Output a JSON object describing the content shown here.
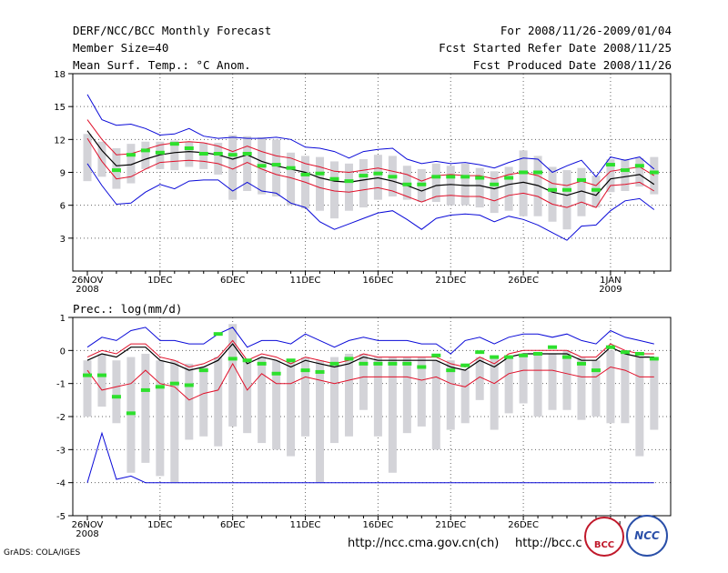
{
  "header": {
    "title": "DERF/NCC/BCC Monthly Forecast",
    "member_size": "Member Size=40",
    "variable": "Mean Surf. Temp.: °C Anom.",
    "period": "For 2008/11/26-2009/01/04",
    "started": "Fcst Started Refer Date 2008/11/25",
    "produced": "Fcst Produced Date 2008/11/26"
  },
  "footer": {
    "url1": "http://ncc.cma.gov.cn(ch)",
    "url2": "http://bcc.c",
    "grads": "GrADS: COLA/IGES",
    "logo_bcc": "BCC",
    "logo_ncc": "NCC"
  },
  "colors": {
    "spread": "#d3d3d8",
    "mean": "#000000",
    "inner": "#e0102a",
    "outer": "#0a0ad8",
    "obs": "#2de02d"
  },
  "chart_data": [
    {
      "type": "line",
      "title": "Mean Surf. Temp.: °C Anom.",
      "ylim": [
        0,
        18
      ],
      "yticks": [
        3,
        6,
        9,
        12,
        15,
        18
      ],
      "xticks": [
        {
          "day": 0,
          "label": "26NOV",
          "sub": "2008"
        },
        {
          "day": 5,
          "label": "1DEC",
          "sub": ""
        },
        {
          "day": 10,
          "label": "6DEC",
          "sub": ""
        },
        {
          "day": 15,
          "label": "11DEC",
          "sub": ""
        },
        {
          "day": 20,
          "label": "16DEC",
          "sub": ""
        },
        {
          "day": 25,
          "label": "21DEC",
          "sub": ""
        },
        {
          "day": 30,
          "label": "26DEC",
          "sub": ""
        },
        {
          "day": 36,
          "label": "1JAN",
          "sub": "2009"
        }
      ],
      "x": [
        0,
        1,
        2,
        3,
        4,
        5,
        6,
        7,
        8,
        9,
        10,
        11,
        12,
        13,
        14,
        15,
        16,
        17,
        18,
        19,
        20,
        21,
        22,
        23,
        24,
        25,
        26,
        27,
        28,
        29,
        30,
        31,
        32,
        33,
        34,
        35,
        36,
        37,
        38,
        39
      ],
      "mean": [
        12.8,
        11.0,
        9.6,
        9.7,
        10.2,
        10.6,
        10.8,
        10.9,
        10.8,
        10.6,
        10.2,
        10.6,
        10.0,
        9.6,
        9.3,
        9.0,
        8.5,
        8.2,
        8.1,
        8.3,
        8.5,
        8.2,
        7.8,
        7.3,
        7.8,
        7.9,
        7.8,
        7.8,
        7.5,
        7.9,
        8.1,
        7.8,
        7.2,
        6.9,
        7.3,
        6.9,
        8.4,
        8.6,
        8.8,
        7.9
      ],
      "upper1": [
        13.8,
        12.0,
        10.6,
        10.7,
        11.1,
        11.5,
        11.7,
        11.8,
        11.7,
        11.4,
        10.9,
        11.4,
        10.9,
        10.5,
        10.3,
        9.8,
        9.5,
        9.1,
        9.0,
        9.2,
        9.4,
        9.1,
        8.8,
        8.2,
        8.7,
        8.8,
        8.7,
        8.7,
        8.4,
        8.8,
        9.0,
        8.7,
        8.0,
        7.8,
        8.2,
        7.8,
        9.1,
        9.3,
        9.5,
        8.7
      ],
      "lower1": [
        12.1,
        10.0,
        8.4,
        8.6,
        9.3,
        9.9,
        10.0,
        10.1,
        10.0,
        9.8,
        9.3,
        9.9,
        9.3,
        8.8,
        8.5,
        8.1,
        7.6,
        7.3,
        7.2,
        7.4,
        7.6,
        7.3,
        6.8,
        6.3,
        6.8,
        6.9,
        6.8,
        6.8,
        6.4,
        6.9,
        7.1,
        6.8,
        6.1,
        5.8,
        6.3,
        5.8,
        7.8,
        7.9,
        8.1,
        7.3
      ],
      "upper2": [
        16.1,
        13.8,
        13.3,
        13.4,
        13.0,
        12.4,
        12.5,
        13.0,
        12.3,
        12.1,
        12.2,
        12.1,
        12.1,
        12.2,
        12.0,
        11.3,
        11.2,
        10.9,
        10.3,
        10.9,
        11.1,
        11.2,
        10.2,
        9.8,
        10.0,
        9.8,
        9.9,
        9.7,
        9.4,
        9.9,
        10.3,
        10.2,
        9.0,
        9.6,
        10.1,
        8.6,
        10.4,
        10.1,
        10.4,
        9.3
      ],
      "lower2": [
        9.8,
        7.8,
        6.1,
        6.2,
        7.2,
        7.9,
        7.5,
        8.2,
        8.3,
        8.3,
        7.3,
        8.1,
        7.3,
        7.1,
        6.2,
        5.8,
        4.5,
        3.8,
        4.3,
        4.8,
        5.3,
        5.5,
        4.7,
        3.8,
        4.8,
        5.1,
        5.2,
        5.1,
        4.5,
        5.0,
        4.7,
        4.2,
        3.5,
        2.8,
        4.1,
        4.2,
        5.5,
        6.4,
        6.6,
        5.6
      ],
      "box_high": [
        12.5,
        11.8,
        11.2,
        11.6,
        11.8,
        11.8,
        11.9,
        11.8,
        11.7,
        11.7,
        12.4,
        12.3,
        12.2,
        12.0,
        10.8,
        10.5,
        10.4,
        10.0,
        9.8,
        10.2,
        10.6,
        10.5,
        9.6,
        9.3,
        9.8,
        9.6,
        9.8,
        9.4,
        9.1,
        9.5,
        11.0,
        10.5,
        9.5,
        9.2,
        9.4,
        8.7,
        10.2,
        10.2,
        10.3,
        10.4
      ],
      "box_low": [
        8.2,
        8.6,
        7.5,
        8.0,
        9.3,
        9.3,
        9.2,
        9.5,
        9.3,
        8.8,
        6.5,
        7.3,
        7.0,
        6.8,
        6.0,
        5.7,
        5.5,
        4.8,
        5.5,
        5.8,
        6.5,
        6.8,
        6.5,
        6.3,
        6.3,
        6.0,
        6.0,
        5.8,
        5.3,
        5.5,
        5.0,
        5.0,
        4.5,
        3.8,
        5.0,
        5.8,
        7.2,
        7.3,
        7.7,
        7.0
      ],
      "obs": [
        null,
        null,
        9.2,
        10.6,
        11.0,
        10.8,
        11.6,
        11.2,
        10.7,
        10.7,
        10.6,
        10.7,
        9.6,
        9.7,
        9.4,
        8.8,
        8.9,
        8.4,
        8.2,
        8.7,
        8.9,
        8.6,
        7.9,
        7.9,
        8.6,
        8.6,
        8.6,
        8.5,
        7.9,
        8.5,
        9.0,
        9.0,
        7.4,
        7.4,
        8.3,
        7.4,
        9.7,
        9.2,
        9.6,
        9.0
      ]
    },
    {
      "type": "line",
      "title": "Prec.: log(mm/d)",
      "ylim": [
        -5,
        1
      ],
      "yticks": [
        -5,
        -4,
        -3,
        -2,
        -1,
        0,
        1
      ],
      "xticks": [
        {
          "day": 0,
          "label": "26NOV",
          "sub": "2008"
        },
        {
          "day": 5,
          "label": "1DEC",
          "sub": ""
        },
        {
          "day": 10,
          "label": "6DEC",
          "sub": ""
        },
        {
          "day": 15,
          "label": "11DEC",
          "sub": ""
        },
        {
          "day": 20,
          "label": "16DEC",
          "sub": ""
        },
        {
          "day": 25,
          "label": "21DEC",
          "sub": ""
        },
        {
          "day": 30,
          "label": "26DEC",
          "sub": ""
        },
        {
          "day": 36,
          "label": "1JAN",
          "sub": ""
        }
      ],
      "x": [
        0,
        1,
        2,
        3,
        4,
        5,
        6,
        7,
        8,
        9,
        10,
        11,
        12,
        13,
        14,
        15,
        16,
        17,
        18,
        19,
        20,
        21,
        22,
        23,
        24,
        25,
        26,
        27,
        28,
        29,
        30,
        31,
        32,
        33,
        34,
        35,
        36,
        37,
        38,
        39
      ],
      "mean": [
        -0.3,
        -0.1,
        -0.2,
        0.1,
        0.1,
        -0.3,
        -0.4,
        -0.6,
        -0.5,
        -0.3,
        0.2,
        -0.4,
        -0.2,
        -0.3,
        -0.5,
        -0.3,
        -0.4,
        -0.5,
        -0.4,
        -0.2,
        -0.3,
        -0.3,
        -0.3,
        -0.3,
        -0.3,
        -0.5,
        -0.6,
        -0.3,
        -0.5,
        -0.2,
        -0.1,
        -0.1,
        -0.1,
        -0.1,
        -0.3,
        -0.3,
        0.1,
        -0.1,
        -0.2,
        -0.2
      ],
      "upper1": [
        -0.2,
        0.0,
        -0.1,
        0.2,
        0.2,
        -0.2,
        -0.3,
        -0.5,
        -0.4,
        -0.2,
        0.3,
        -0.3,
        -0.1,
        -0.2,
        -0.4,
        -0.2,
        -0.3,
        -0.4,
        -0.3,
        -0.1,
        -0.2,
        -0.2,
        -0.2,
        -0.2,
        -0.2,
        -0.4,
        -0.5,
        -0.2,
        -0.4,
        -0.1,
        0.0,
        0.0,
        0.0,
        0.0,
        -0.2,
        -0.2,
        0.2,
        0.0,
        -0.1,
        -0.1
      ],
      "lower1": [
        -0.6,
        -1.2,
        -1.1,
        -1.0,
        -0.6,
        -1.0,
        -1.1,
        -1.5,
        -1.3,
        -1.2,
        -0.4,
        -1.2,
        -0.7,
        -1.0,
        -1.0,
        -0.8,
        -0.9,
        -1.0,
        -0.9,
        -0.8,
        -0.8,
        -0.8,
        -0.8,
        -0.9,
        -0.8,
        -1.0,
        -1.1,
        -0.8,
        -1.0,
        -0.7,
        -0.6,
        -0.6,
        -0.6,
        -0.7,
        -0.8,
        -0.8,
        -0.5,
        -0.6,
        -0.8,
        -0.8
      ],
      "upper2": [
        0.1,
        0.4,
        0.3,
        0.6,
        0.7,
        0.3,
        0.3,
        0.2,
        0.2,
        0.5,
        0.7,
        0.1,
        0.3,
        0.3,
        0.2,
        0.5,
        0.3,
        0.1,
        0.3,
        0.4,
        0.3,
        0.3,
        0.3,
        0.2,
        0.2,
        -0.1,
        0.3,
        0.4,
        0.2,
        0.4,
        0.5,
        0.5,
        0.4,
        0.5,
        0.3,
        0.2,
        0.6,
        0.4,
        0.3,
        0.2
      ],
      "lower2": [
        -4.0,
        -2.5,
        -3.9,
        -3.8,
        -4.0,
        -4.0,
        -4.0,
        -4.0,
        -4.0,
        -4.0,
        -4.0,
        -4.0,
        -4.0,
        -4.0,
        -4.0,
        -4.0,
        -4.0,
        -4.0,
        -4.0,
        -4.0,
        -4.0,
        -4.0,
        -4.0,
        -4.0,
        -4.0,
        -4.0,
        -4.0,
        -4.0,
        -4.0,
        -4.0,
        -4.0,
        -4.0,
        -4.0,
        -4.0,
        -4.0,
        -4.0,
        -4.0,
        -4.0,
        -4.0,
        -4.0
      ],
      "box_high": [
        -0.3,
        -0.1,
        -0.3,
        -0.2,
        -0.1,
        -0.3,
        -0.3,
        -0.4,
        -0.5,
        -0.2,
        0.8,
        -0.3,
        -0.2,
        -0.3,
        -0.3,
        -0.2,
        -0.3,
        -0.2,
        -0.1,
        -0.1,
        -0.2,
        -0.2,
        -0.2,
        -0.2,
        -0.3,
        -0.3,
        -0.6,
        -0.2,
        -0.2,
        -0.2,
        -0.1,
        -0.1,
        -0.1,
        0.0,
        -0.2,
        -0.3,
        0.0,
        -0.1,
        -0.2,
        -0.2
      ],
      "box_low": [
        -2.0,
        -1.7,
        -2.2,
        -3.7,
        -3.4,
        -3.8,
        -4.0,
        -2.7,
        -2.6,
        -2.9,
        -2.3,
        -2.5,
        -2.8,
        -3.0,
        -3.2,
        -2.6,
        -4.0,
        -2.8,
        -2.6,
        -1.8,
        -2.6,
        -3.7,
        -2.5,
        -2.3,
        -3.0,
        -2.4,
        -2.2,
        -1.5,
        -2.4,
        -1.9,
        -1.6,
        -2.0,
        -1.8,
        -1.8,
        -2.1,
        -2.0,
        -2.2,
        -2.2,
        -3.2,
        -2.4
      ],
      "obs": [
        -0.75,
        -0.75,
        -1.4,
        -1.9,
        -1.2,
        -1.1,
        -1.0,
        -1.05,
        -0.6,
        0.5,
        -0.25,
        -0.3,
        -0.4,
        -0.7,
        -0.3,
        -0.6,
        -0.65,
        -0.4,
        -0.25,
        -0.4,
        -0.4,
        -0.4,
        -0.4,
        -0.5,
        -0.15,
        -0.6,
        -0.45,
        -0.05,
        -0.2,
        -0.2,
        -0.15,
        -0.1,
        0.1,
        -0.2,
        -0.4,
        -0.6,
        0.1,
        -0.05,
        -0.1,
        -0.25
      ]
    }
  ]
}
